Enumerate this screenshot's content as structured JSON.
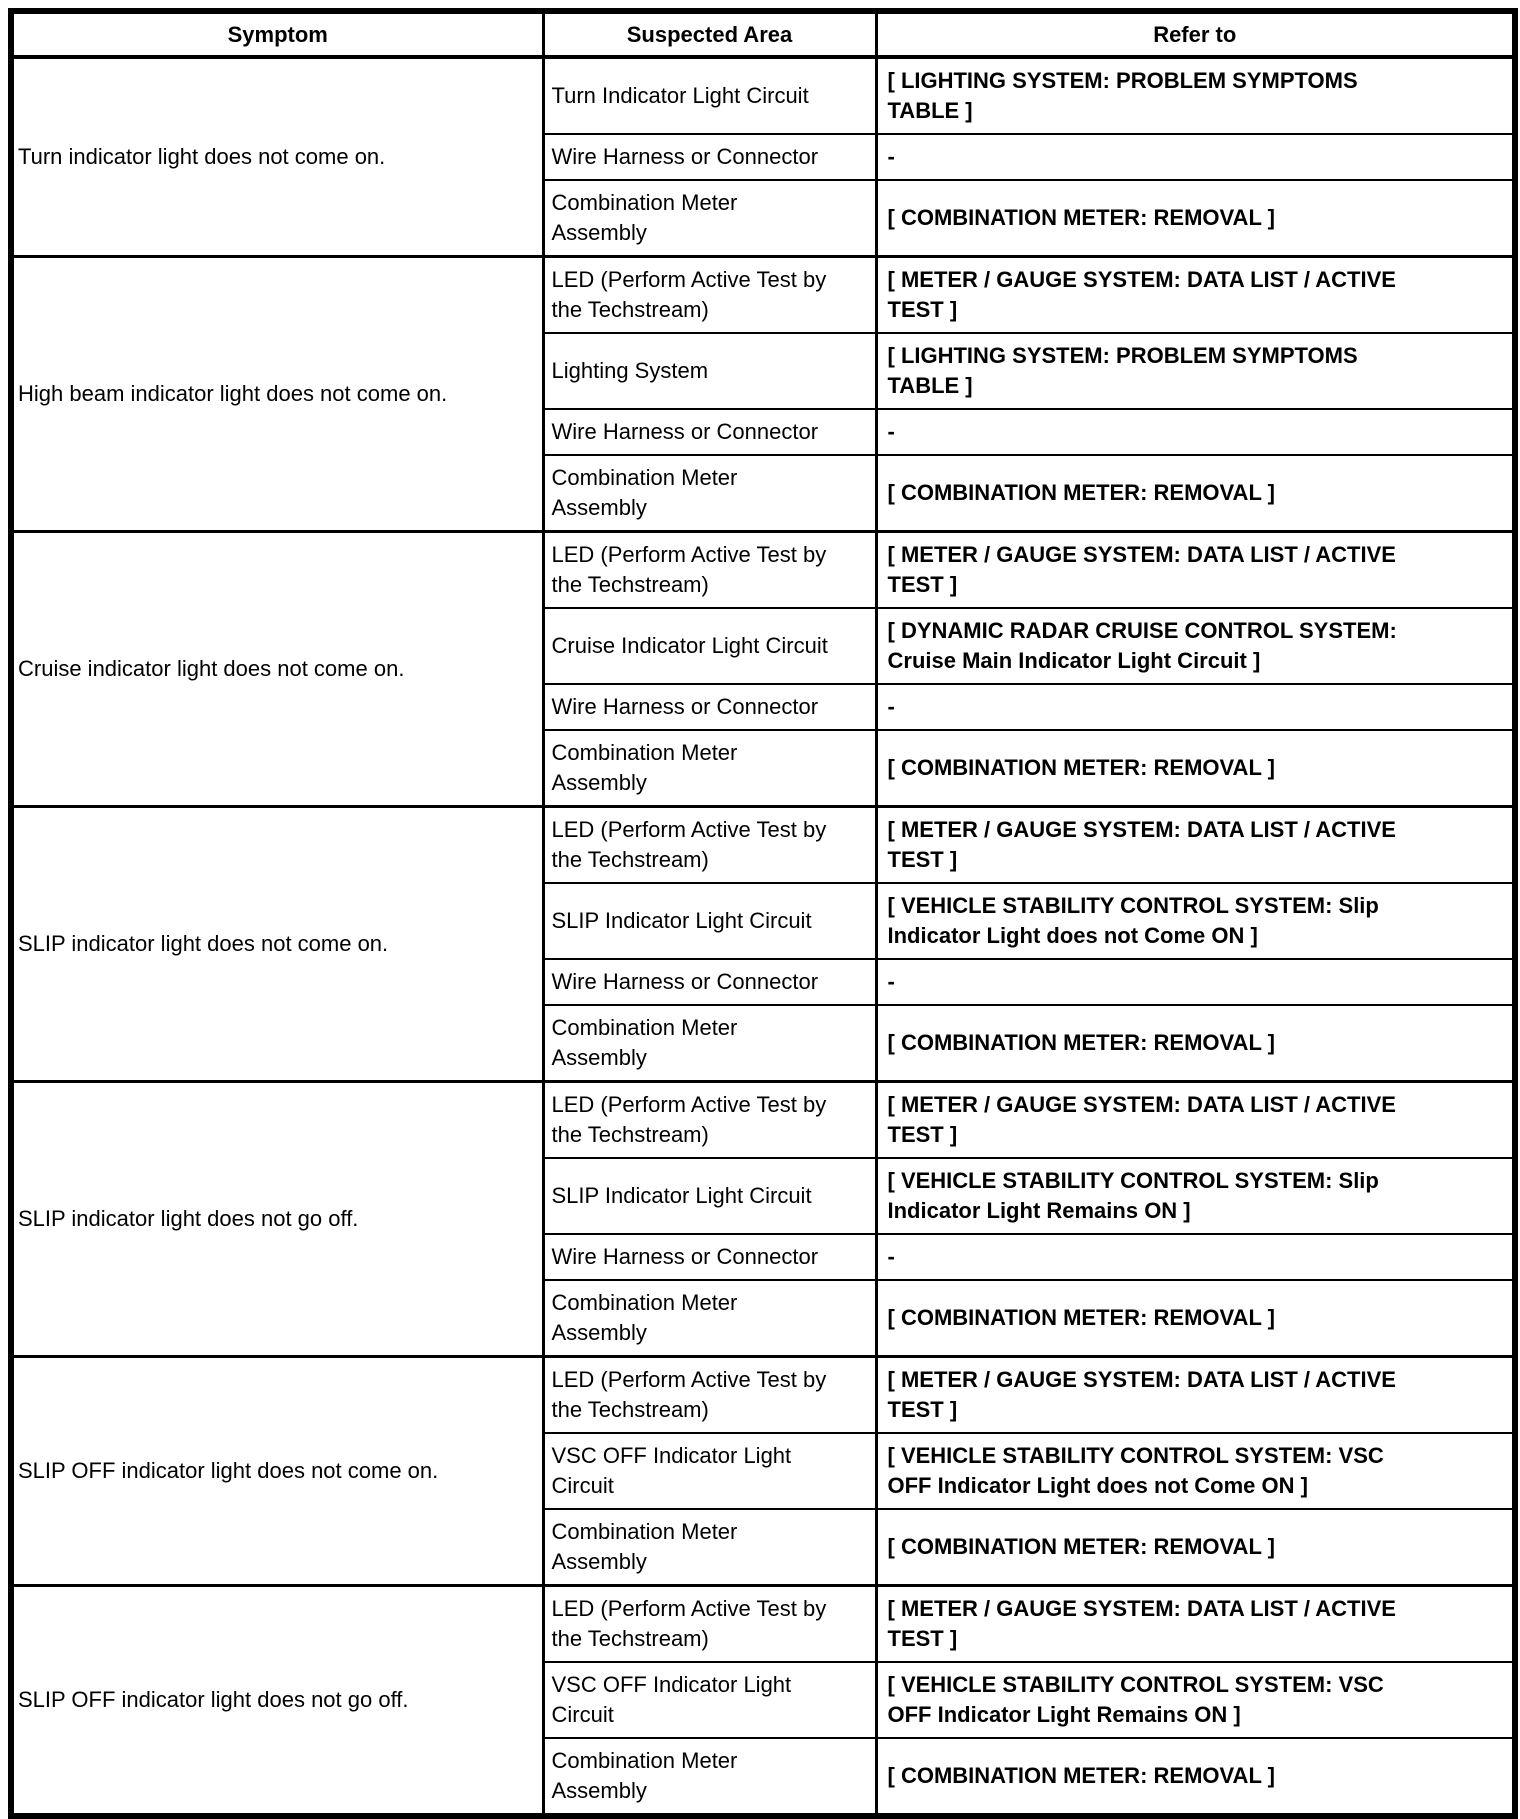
{
  "colors": {
    "border": "#000000",
    "background": "#ffffff",
    "text": "#000000"
  },
  "table": {
    "headers": [
      "Symptom",
      "Suspected Area",
      "Refer to"
    ],
    "groups": [
      {
        "symptom": "Turn indicator light does not come on.",
        "rows": [
          {
            "area": "Turn Indicator Light Circuit",
            "refer": "[ LIGHTING SYSTEM: PROBLEM SYMPTOMS\nTABLE ]"
          },
          {
            "area": "Wire Harness or Connector",
            "refer": "-"
          },
          {
            "area": "Combination Meter\nAssembly",
            "refer": "[ COMBINATION METER: REMOVAL ]"
          }
        ]
      },
      {
        "symptom": "High beam indicator light does not come on.",
        "rows": [
          {
            "area": "LED (Perform Active Test by\nthe Techstream)",
            "refer": "[ METER / GAUGE SYSTEM: DATA LIST / ACTIVE\nTEST ]"
          },
          {
            "area": "Lighting System",
            "refer": "[ LIGHTING SYSTEM: PROBLEM SYMPTOMS\nTABLE ]"
          },
          {
            "area": "Wire Harness or Connector",
            "refer": "-"
          },
          {
            "area": "Combination Meter\nAssembly",
            "refer": "[ COMBINATION METER: REMOVAL ]"
          }
        ]
      },
      {
        "symptom": "Cruise indicator light does not come on.",
        "rows": [
          {
            "area": "LED (Perform Active Test by\nthe Techstream)",
            "refer": "[ METER / GAUGE SYSTEM: DATA LIST / ACTIVE\nTEST ]"
          },
          {
            "area": "Cruise Indicator Light Circuit",
            "refer": "[ DYNAMIC RADAR CRUISE CONTROL SYSTEM:\nCruise Main Indicator Light Circuit ]"
          },
          {
            "area": "Wire Harness or Connector",
            "refer": "-"
          },
          {
            "area": "Combination Meter\nAssembly",
            "refer": "[ COMBINATION METER: REMOVAL ]"
          }
        ]
      },
      {
        "symptom": "SLIP indicator light does not come on.",
        "rows": [
          {
            "area": "LED (Perform Active Test by\nthe Techstream)",
            "refer": "[ METER / GAUGE SYSTEM: DATA LIST / ACTIVE\nTEST ]"
          },
          {
            "area": "SLIP Indicator Light Circuit",
            "refer": "[ VEHICLE STABILITY CONTROL SYSTEM: Slip\nIndicator Light does not Come ON ]"
          },
          {
            "area": "Wire Harness or Connector",
            "refer": "-"
          },
          {
            "area": "Combination Meter\nAssembly",
            "refer": "[ COMBINATION METER: REMOVAL ]"
          }
        ]
      },
      {
        "symptom": "SLIP indicator light does not go off.",
        "rows": [
          {
            "area": "LED (Perform Active Test by\nthe Techstream)",
            "refer": "[ METER / GAUGE SYSTEM: DATA LIST / ACTIVE\nTEST ]"
          },
          {
            "area": "SLIP Indicator Light Circuit",
            "refer": "[ VEHICLE STABILITY CONTROL SYSTEM: Slip\nIndicator Light Remains ON ]"
          },
          {
            "area": "Wire Harness or Connector",
            "refer": "-"
          },
          {
            "area": "Combination Meter\nAssembly",
            "refer": "[ COMBINATION METER: REMOVAL ]"
          }
        ]
      },
      {
        "symptom": "SLIP OFF indicator light does not come on.",
        "rows": [
          {
            "area": "LED (Perform Active Test by\nthe Techstream)",
            "refer": "[ METER / GAUGE SYSTEM: DATA LIST / ACTIVE\nTEST ]"
          },
          {
            "area": "VSC OFF Indicator Light\nCircuit",
            "refer": "[ VEHICLE STABILITY CONTROL SYSTEM: VSC\nOFF Indicator Light does not Come ON ]"
          },
          {
            "area": "Combination Meter\nAssembly",
            "refer": "[ COMBINATION METER: REMOVAL ]"
          }
        ]
      },
      {
        "symptom": "SLIP OFF indicator light does not go off.",
        "rows": [
          {
            "area": "LED (Perform Active Test by\nthe Techstream)",
            "refer": "[ METER / GAUGE SYSTEM: DATA LIST / ACTIVE\nTEST ]"
          },
          {
            "area": "VSC OFF Indicator Light\nCircuit",
            "refer": "[ VEHICLE STABILITY CONTROL SYSTEM: VSC\nOFF Indicator Light Remains ON ]"
          },
          {
            "area": "Combination Meter\nAssembly",
            "refer": "[ COMBINATION METER: REMOVAL ]"
          }
        ]
      }
    ]
  }
}
